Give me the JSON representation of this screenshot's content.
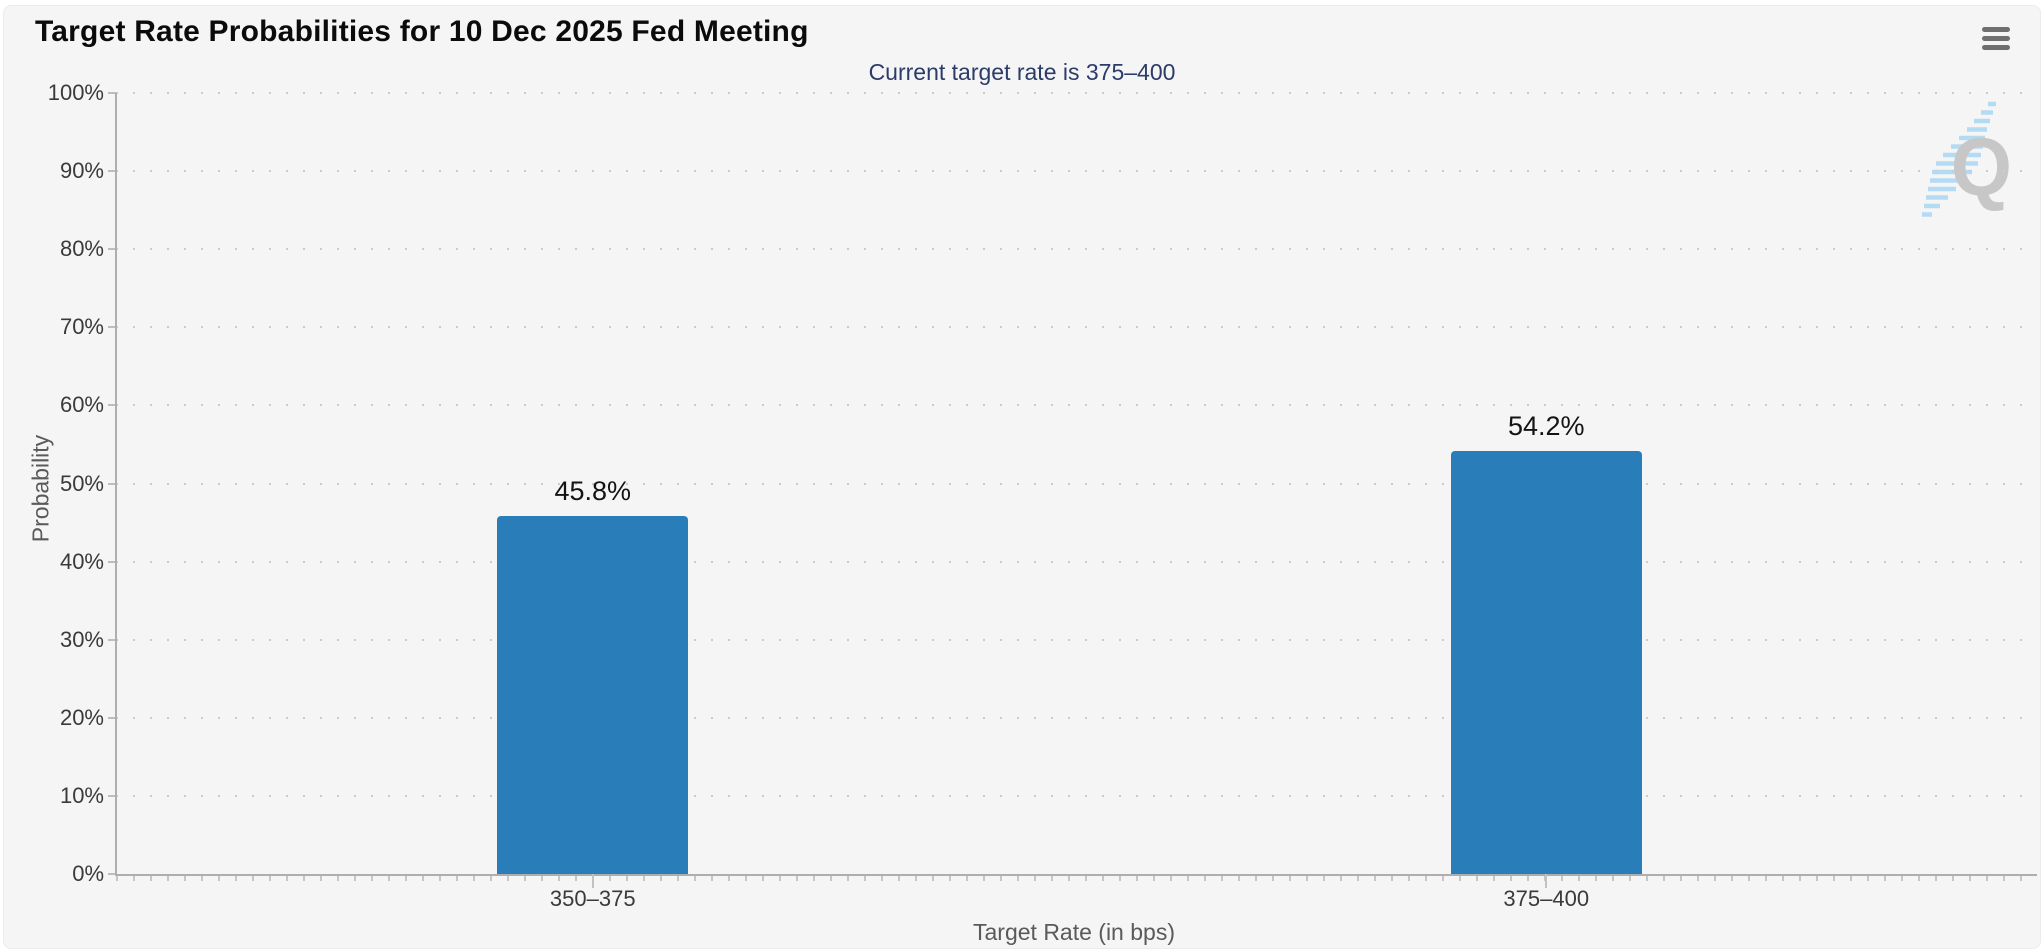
{
  "chart_data": {
    "type": "bar",
    "title": "Target Rate Probabilities for 10 Dec 2025 Fed Meeting",
    "subtitle": "Current target rate is 375–400",
    "categories": [
      "350–375",
      "375–400"
    ],
    "values": [
      45.8,
      54.2
    ],
    "value_labels": [
      "45.8%",
      "54.2%"
    ],
    "xlabel": "Target Rate (in bps)",
    "ylabel": "Probability",
    "ylim": [
      0,
      100
    ],
    "y_tick_step": 10,
    "y_tick_labels": [
      "0%",
      "10%",
      "20%",
      "30%",
      "40%",
      "50%",
      "60%",
      "70%",
      "80%",
      "90%",
      "100%"
    ],
    "grid": "horizontal-dotted",
    "legend": "none",
    "bar_color": "#297eba",
    "subtitle_color": "#2c3c68",
    "title_color": "#0b0b0b"
  },
  "icons": {
    "menu": "hamburger-menu-icon",
    "watermark_letter": "Q"
  }
}
